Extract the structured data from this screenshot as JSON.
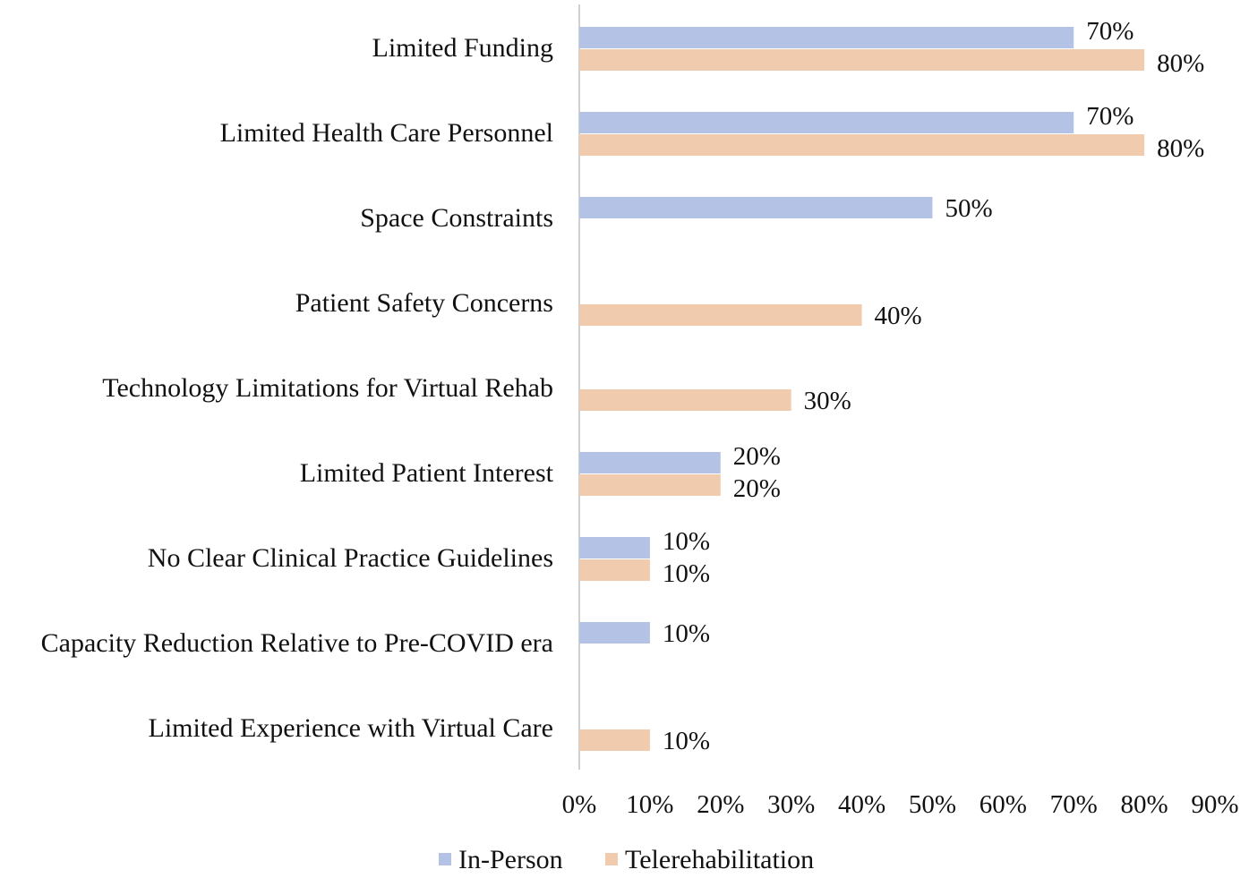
{
  "chart_data": {
    "type": "bar",
    "orientation": "horizontal",
    "title": "",
    "xlabel": "",
    "ylabel": "",
    "categories": [
      "Limited Funding",
      "Limited Health Care Personnel",
      "Space Constraints",
      "Patient Safety Concerns",
      "Technology Limitations for Virtual Rehab",
      "Limited Patient Interest",
      "No Clear Clinical Practice Guidelines",
      "Capacity Reduction Relative to Pre-COVID era",
      "Limited Experience with Virtual Care"
    ],
    "series": [
      {
        "name": "In-Person",
        "color": "#b4c2e6",
        "values": [
          70,
          70,
          50,
          null,
          null,
          20,
          10,
          10,
          null
        ]
      },
      {
        "name": "Telerehabilitation",
        "color": "#f0cbad",
        "values": [
          80,
          80,
          null,
          40,
          30,
          20,
          10,
          null,
          10
        ]
      }
    ],
    "xlim": [
      0,
      90
    ],
    "xticks": [
      "0%",
      "10%",
      "20%",
      "30%",
      "40%",
      "50%",
      "60%",
      "70%",
      "80%",
      "90%"
    ],
    "value_suffix": "%",
    "grid": false,
    "legend": "bottom"
  }
}
